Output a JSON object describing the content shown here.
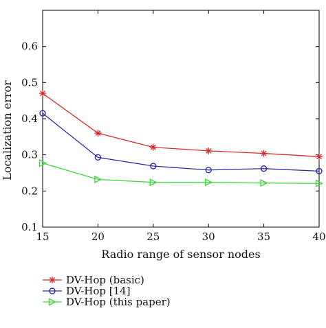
{
  "chart_data": {
    "type": "line",
    "title": "",
    "xlabel": "Radio range of sensor nodes",
    "ylabel": "Localization error",
    "x": [
      15,
      20,
      25,
      30,
      35,
      40
    ],
    "xlim": [
      15,
      40
    ],
    "ylim": [
      0.1,
      0.7
    ],
    "xticks": [
      "15",
      "20",
      "25",
      "30",
      "35",
      "40"
    ],
    "yticks": [
      "0.1",
      "0.2",
      "0.3",
      "0.4",
      "0.5",
      "0.6"
    ],
    "ytick_values": [
      0.1,
      0.2,
      0.3,
      0.4,
      0.5,
      0.6
    ],
    "grid": false,
    "legend_position": "below plot, left",
    "series": [
      {
        "name": "DV-Hop (basic)",
        "values": [
          0.47,
          0.36,
          0.321,
          0.311,
          0.304,
          0.295
        ],
        "color": "#d42a2a",
        "marker": "star"
      },
      {
        "name": "DV-Hop [14]",
        "values": [
          0.415,
          0.293,
          0.269,
          0.258,
          0.262,
          0.255
        ],
        "color": "#2a2aa8",
        "marker": "circle"
      },
      {
        "name": "DV-Hop (this paper)",
        "values": [
          0.277,
          0.232,
          0.224,
          0.224,
          0.222,
          0.221
        ],
        "color": "#3fd83f",
        "marker": "triangle-right"
      }
    ]
  }
}
